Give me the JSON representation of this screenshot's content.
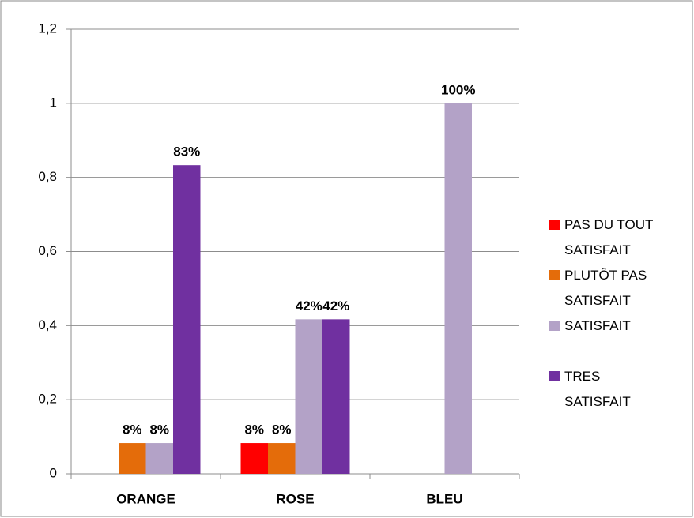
{
  "chart_data": {
    "type": "bar",
    "categories": [
      "ORANGE",
      "ROSE",
      "BLEU"
    ],
    "series": [
      {
        "name": "PAS DU TOUT SATISFAIT",
        "color": "#ff0000",
        "values": [
          0,
          0.083,
          0
        ],
        "value_labels": [
          null,
          "8%",
          null
        ]
      },
      {
        "name": "PLUTÔT PAS SATISFAIT",
        "color": "#e46c0a",
        "values": [
          0.083,
          0.083,
          0
        ],
        "value_labels": [
          "8%",
          "8%",
          null
        ]
      },
      {
        "name": "SATISFAIT",
        "color": "#b3a2c7",
        "values": [
          0.083,
          0.417,
          1
        ],
        "value_labels": [
          "8%",
          "42%",
          "100%"
        ]
      },
      {
        "name": "TRES SATISFAIT",
        "color": "#7030a0",
        "values": [
          0.833,
          0.417,
          0
        ],
        "value_labels": [
          "83%",
          "42%",
          null
        ]
      }
    ],
    "ylim": [
      0,
      1.2
    ],
    "yticks": [
      0,
      {
        "value": 0.2,
        "label": "0,2"
      },
      {
        "value": 0.4,
        "label": "0,4"
      },
      {
        "value": 0.6,
        "label": "0,6"
      },
      {
        "value": 0.8,
        "label": "0,8"
      },
      1,
      {
        "value": 1.2,
        "label": "1,2"
      }
    ],
    "grid": true,
    "legend": "right"
  }
}
